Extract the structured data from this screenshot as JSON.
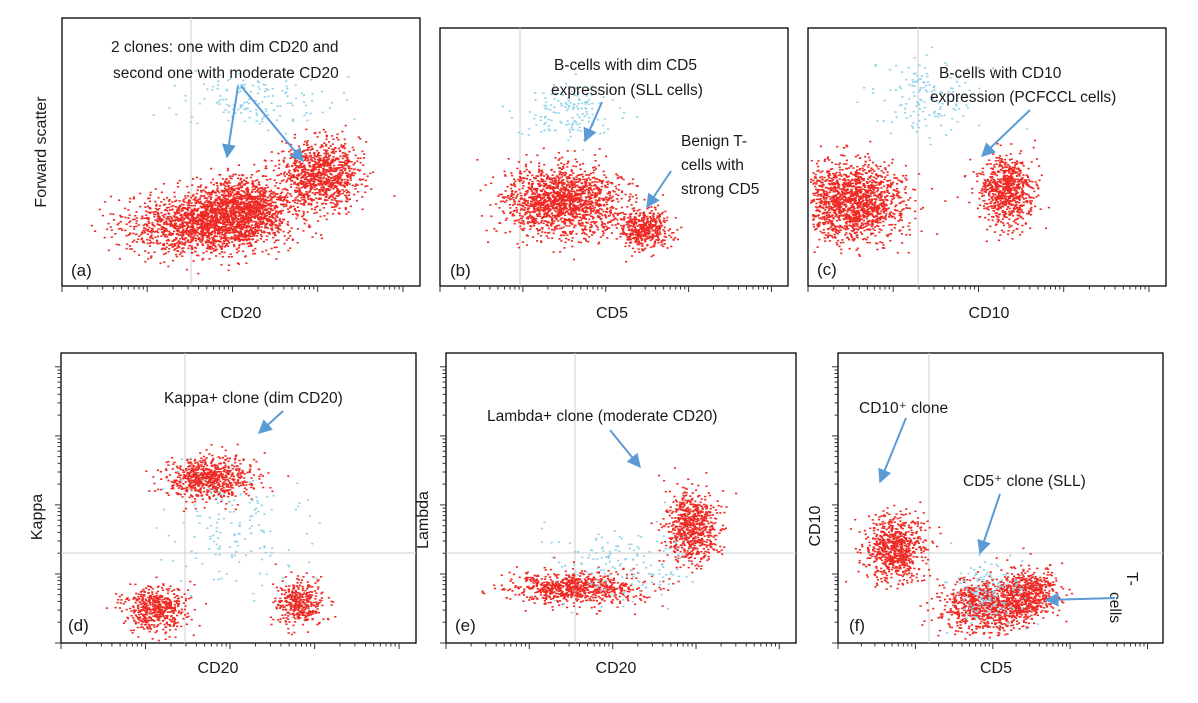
{
  "colors": {
    "event_red": "#ee2a24",
    "event_blue": "#8fd3ea",
    "arrow_blue": "#5b9bd5",
    "frame": "#000000",
    "guide": "#cfcfcf"
  },
  "chart_data": [
    {
      "type": "scatter",
      "panel_label": "(a)",
      "xlabel": "CD20",
      "ylabel": "Forward scatter",
      "x_scale": "log",
      "annotations": [
        {
          "lines": [
            "2 clones:  one with dim CD20 and",
            "second one with moderate CD20"
          ]
        }
      ],
      "populations": [
        {
          "color": "red",
          "description": "main B-cell population",
          "cx": 0.4,
          "cy": 0.23,
          "sx": 0.2,
          "sy": 0.1
        },
        {
          "color": "red",
          "description": "dim CD20 clone",
          "cx": 0.5,
          "cy": 0.3,
          "sx": 0.12,
          "sy": 0.1
        },
        {
          "color": "red",
          "description": "moderate CD20 clone",
          "cx": 0.72,
          "cy": 0.42,
          "sx": 0.1,
          "sy": 0.11
        },
        {
          "color": "blue",
          "description": "large cells",
          "cx": 0.55,
          "cy": 0.7,
          "sx": 0.2,
          "sy": 0.09
        }
      ]
    },
    {
      "type": "scatter",
      "panel_label": "(b)",
      "xlabel": "CD5",
      "ylabel": "",
      "x_scale": "log",
      "annotations": [
        {
          "lines": [
            "B-cells with dim CD5",
            "expression (SLL cells)"
          ]
        },
        {
          "lines": [
            "Benign T-",
            "cells with",
            "strong CD5"
          ]
        }
      ],
      "populations": [
        {
          "color": "red",
          "description": "SLL cells (dim CD5)",
          "cx": 0.35,
          "cy": 0.33,
          "sx": 0.15,
          "sy": 0.12
        },
        {
          "color": "red",
          "description": "benign T-cells (strong CD5)",
          "cx": 0.58,
          "cy": 0.22,
          "sx": 0.07,
          "sy": 0.07
        },
        {
          "color": "blue",
          "description": "large cells",
          "cx": 0.37,
          "cy": 0.68,
          "sx": 0.12,
          "sy": 0.11
        }
      ]
    },
    {
      "type": "scatter",
      "panel_label": "(c)",
      "xlabel": "CD10",
      "ylabel": "",
      "x_scale": "log",
      "annotations": [
        {
          "lines": [
            "B-cells with CD10",
            "expression (PCFCCL cells)"
          ]
        }
      ],
      "populations": [
        {
          "color": "red",
          "description": "CD10-negative B-cells",
          "cx": 0.12,
          "cy": 0.33,
          "sx": 0.13,
          "sy": 0.13
        },
        {
          "color": "red",
          "description": "PCFCCL cells (CD10+)",
          "cx": 0.55,
          "cy": 0.37,
          "sx": 0.07,
          "sy": 0.12
        },
        {
          "color": "blue",
          "description": "large cells",
          "cx": 0.32,
          "cy": 0.73,
          "sx": 0.14,
          "sy": 0.14
        }
      ]
    },
    {
      "type": "scatter",
      "panel_label": "(d)",
      "xlabel": "CD20",
      "ylabel": "Kappa",
      "x_scale": "log",
      "y_scale": "log",
      "annotations": [
        {
          "lines": [
            "Kappa+ clone (dim CD20)"
          ]
        }
      ],
      "populations": [
        {
          "color": "red",
          "description": "Kappa+ clone (dim CD20)",
          "cx": 0.41,
          "cy": 0.57,
          "sx": 0.11,
          "sy": 0.07
        },
        {
          "color": "red",
          "description": "Kappa-negative cells, low CD20",
          "cx": 0.26,
          "cy": 0.12,
          "sx": 0.08,
          "sy": 0.07
        },
        {
          "color": "red",
          "description": "Kappa-negative cells, higher CD20",
          "cx": 0.67,
          "cy": 0.14,
          "sx": 0.06,
          "sy": 0.07
        },
        {
          "color": "blue",
          "description": "scattered events",
          "cx": 0.5,
          "cy": 0.4,
          "sx": 0.2,
          "sy": 0.2
        }
      ]
    },
    {
      "type": "scatter",
      "panel_label": "(e)",
      "xlabel": "CD20",
      "ylabel": "Lambda",
      "x_scale": "log",
      "y_scale": "log",
      "annotations": [
        {
          "lines": [
            "Lambda+ clone (moderate CD20)"
          ]
        }
      ],
      "populations": [
        {
          "color": "red",
          "description": "Lambda-negative cells",
          "cx": 0.37,
          "cy": 0.19,
          "sx": 0.17,
          "sy": 0.05
        },
        {
          "color": "red",
          "description": "Lambda+ clone (moderate CD20)",
          "cx": 0.7,
          "cy": 0.4,
          "sx": 0.07,
          "sy": 0.11
        },
        {
          "color": "blue",
          "description": "scattered events",
          "cx": 0.5,
          "cy": 0.28,
          "sx": 0.2,
          "sy": 0.12
        }
      ]
    },
    {
      "type": "scatter",
      "panel_label": "(f)",
      "xlabel": "CD5",
      "ylabel": "CD10",
      "x_scale": "log",
      "y_scale": "log",
      "annotations": [
        {
          "lines": [
            "CD10⁺ clone"
          ]
        },
        {
          "lines": [
            "CD5⁺ clone (SLL)"
          ]
        },
        {
          "lines": [
            "T-",
            "cells"
          ]
        }
      ],
      "populations": [
        {
          "color": "red",
          "description": "CD10+ clone",
          "cx": 0.17,
          "cy": 0.33,
          "sx": 0.08,
          "sy": 0.1
        },
        {
          "color": "red",
          "description": "CD5+ clone (SLL)",
          "cx": 0.45,
          "cy": 0.13,
          "sx": 0.12,
          "sy": 0.08
        },
        {
          "color": "red",
          "description": "T-cells",
          "cx": 0.58,
          "cy": 0.17,
          "sx": 0.08,
          "sy": 0.08
        },
        {
          "color": "blue",
          "description": "scattered events",
          "cx": 0.45,
          "cy": 0.18,
          "sx": 0.1,
          "sy": 0.1
        }
      ]
    }
  ]
}
